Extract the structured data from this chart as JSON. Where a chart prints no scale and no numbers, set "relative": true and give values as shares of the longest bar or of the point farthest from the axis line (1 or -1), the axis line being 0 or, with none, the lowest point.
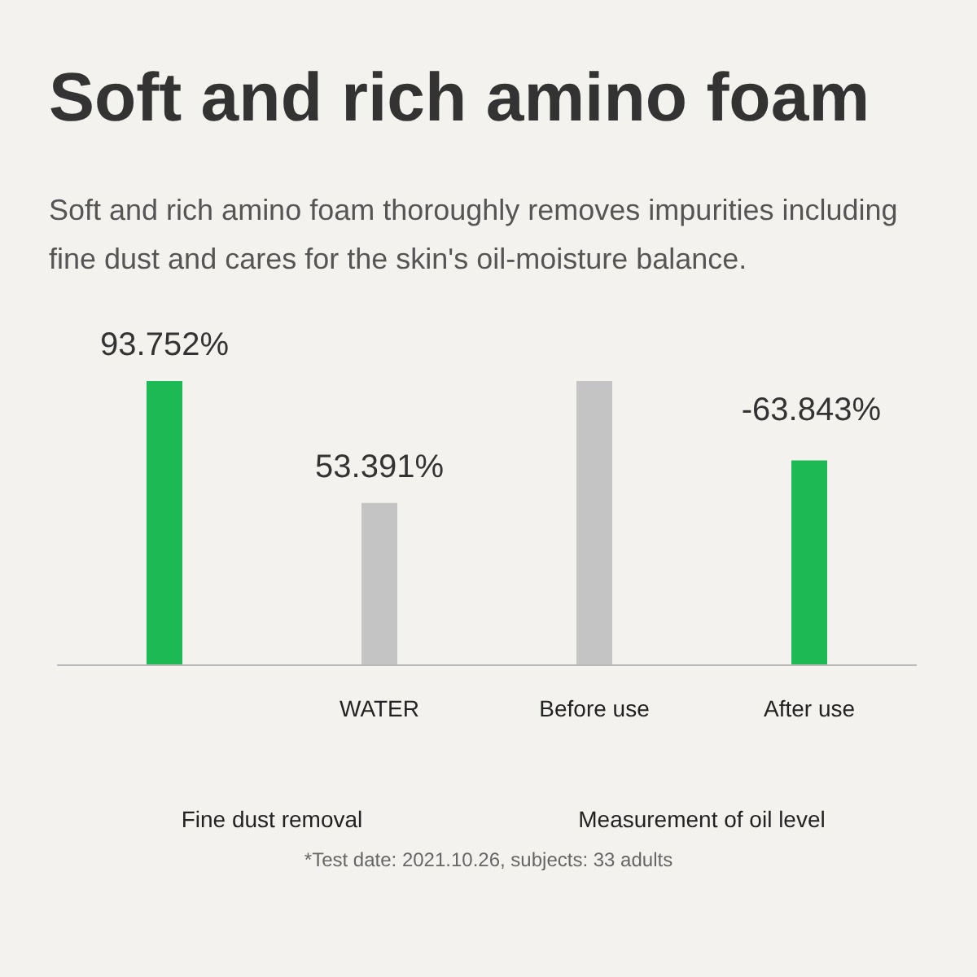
{
  "chart_data": [
    {
      "type": "bar",
      "title": "Soft and rich amino foam",
      "subtitle": "Soft and rich amino foam thoroughly removes impurities including fine dust and cares for the skin's oil-moisture balance.",
      "xlabel": "Fine dust removal",
      "categories": [
        null,
        "WATER"
      ],
      "values": [
        93.752,
        53.391
      ],
      "colors": [
        "#1db954",
        "#c4c4c4"
      ],
      "value_labels": [
        "93.752%",
        "53.391%"
      ]
    },
    {
      "type": "bar",
      "relative": true,
      "xlabel": "Measurement of oil level",
      "categories": [
        "Before use",
        "After use"
      ],
      "values": [
        1,
        0.72
      ],
      "colors": [
        "#c4c4c4",
        "#1db954"
      ],
      "annotations": [
        "-63.843%",
        "*Test date: 2021.10.26, subjects: 33 adults"
      ]
    }
  ]
}
